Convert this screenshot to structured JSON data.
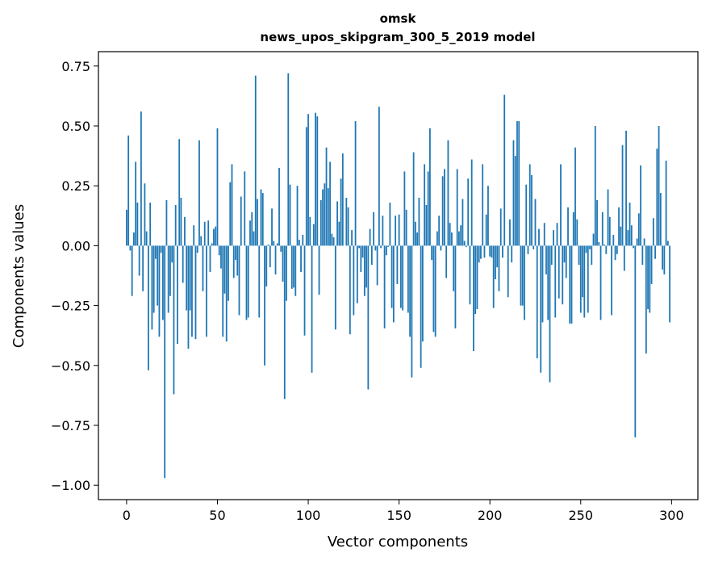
{
  "chart_data": {
    "type": "bar",
    "title": "omsk",
    "subtitle": "news_upos_skipgram_300_5_2019 model",
    "xlabel": "Vector components",
    "ylabel": "Components values",
    "xlim": [
      -15.5,
      314.5
    ],
    "ylim": [
      -1.06,
      0.81
    ],
    "xticks": [
      0,
      50,
      100,
      150,
      200,
      250,
      300
    ],
    "xtick_labels": [
      "0",
      "50",
      "100",
      "150",
      "200",
      "250",
      "300"
    ],
    "yticks": [
      -1.0,
      -0.75,
      -0.5,
      -0.25,
      0.0,
      0.25,
      0.5,
      0.75
    ],
    "ytick_labels": [
      "−1.00",
      "−0.75",
      "−0.50",
      "−0.25",
      "0.00",
      "0.25",
      "0.50",
      "0.75"
    ],
    "grid": false,
    "bar_color": "#1f77b4",
    "values": [
      0.15,
      0.46,
      -0.02,
      -0.21,
      0.055,
      0.35,
      0.18,
      -0.125,
      0.56,
      -0.19,
      0.26,
      0.06,
      -0.52,
      0.18,
      -0.35,
      -0.28,
      -0.055,
      -0.25,
      -0.38,
      -0.03,
      -0.31,
      -0.97,
      0.19,
      -0.28,
      -0.21,
      -0.07,
      -0.62,
      0.17,
      -0.41,
      0.445,
      0.2,
      -0.155,
      0.12,
      -0.27,
      -0.43,
      -0.27,
      -0.38,
      0.085,
      -0.39,
      -0.03,
      0.44,
      0.04,
      -0.19,
      0.1,
      -0.38,
      0.105,
      -0.11,
      0.01,
      0.07,
      0.08,
      0.49,
      -0.04,
      -0.095,
      -0.38,
      -0.2,
      -0.4,
      -0.23,
      0.265,
      0.34,
      -0.135,
      -0.06,
      -0.125,
      -0.29,
      0.205,
      0.0,
      0.31,
      -0.31,
      -0.3,
      0.105,
      0.14,
      0.06,
      0.71,
      0.195,
      -0.3,
      0.235,
      0.22,
      -0.5,
      -0.17,
      0.005,
      -0.09,
      0.155,
      0.02,
      -0.12,
      0.01,
      0.325,
      -0.025,
      -0.15,
      -0.64,
      -0.23,
      0.72,
      0.255,
      -0.18,
      -0.175,
      -0.21,
      0.25,
      0.025,
      -0.11,
      0.045,
      -0.375,
      0.495,
      0.55,
      0.12,
      -0.53,
      0.09,
      0.555,
      0.54,
      -0.205,
      0.19,
      0.235,
      0.26,
      0.41,
      0.24,
      0.35,
      0.05,
      0.035,
      -0.35,
      0.185,
      0.1,
      0.28,
      0.385,
      0.0,
      0.2,
      0.16,
      -0.37,
      0.065,
      -0.29,
      0.52,
      -0.24,
      -0.01,
      -0.11,
      -0.05,
      -0.21,
      -0.175,
      -0.6,
      0.07,
      -0.08,
      0.14,
      -0.02,
      -0.165,
      0.58,
      -0.01,
      0.125,
      -0.345,
      -0.04,
      -0.005,
      0.18,
      -0.26,
      -0.32,
      0.125,
      -0.16,
      0.13,
      -0.26,
      -0.27,
      0.31,
      0.15,
      -0.28,
      -0.38,
      -0.55,
      0.39,
      0.1,
      0.055,
      0.2,
      -0.51,
      -0.4,
      0.34,
      0.17,
      0.31,
      0.49,
      -0.06,
      -0.36,
      -0.38,
      0.06,
      0.125,
      -0.02,
      0.29,
      0.32,
      -0.135,
      0.44,
      0.095,
      0.055,
      -0.19,
      -0.345,
      0.32,
      0.06,
      0.085,
      0.195,
      0.02,
      -0.005,
      0.28,
      -0.245,
      0.36,
      -0.44,
      -0.285,
      -0.265,
      -0.07,
      -0.055,
      0.34,
      -0.05,
      0.13,
      0.25,
      -0.045,
      -0.05,
      -0.26,
      -0.14,
      -0.09,
      -0.19,
      0.155,
      -0.05,
      0.63,
      0.0,
      -0.215,
      0.11,
      -0.07,
      0.44,
      0.375,
      0.52,
      0.52,
      -0.25,
      -0.25,
      -0.31,
      0.255,
      -0.035,
      0.34,
      0.295,
      -0.015,
      0.195,
      -0.47,
      0.07,
      -0.53,
      -0.32,
      0.095,
      -0.12,
      -0.31,
      -0.57,
      -0.08,
      0.065,
      -0.3,
      0.095,
      -0.22,
      0.34,
      -0.245,
      -0.07,
      -0.135,
      0.16,
      -0.325,
      -0.325,
      0.14,
      0.41,
      0.11,
      -0.08,
      -0.28,
      -0.215,
      -0.3,
      -0.03,
      -0.28,
      -0.015,
      -0.08,
      0.05,
      0.5,
      0.19,
      0.015,
      -0.31,
      0.14,
      0.005,
      -0.035,
      0.235,
      0.12,
      -0.29,
      0.045,
      -0.06,
      -0.035,
      0.16,
      0.08,
      0.42,
      -0.105,
      0.48,
      0.065,
      0.18,
      0.085,
      -0.01,
      -0.8,
      0.03,
      0.135,
      0.335,
      -0.08,
      0.03,
      -0.45,
      -0.265,
      -0.28,
      -0.16,
      0.115,
      -0.055,
      0.405,
      0.5,
      0.22,
      -0.1,
      -0.12,
      0.355,
      0.02,
      -0.32
    ]
  }
}
